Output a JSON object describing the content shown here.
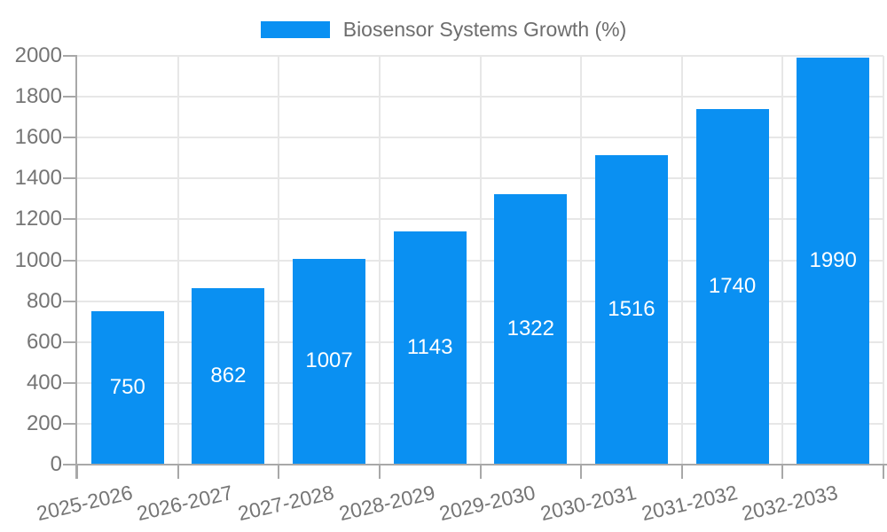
{
  "chart_data": {
    "type": "bar",
    "title": "Biosensor Systems Growth (%)",
    "categories": [
      "2025-2026",
      "2026-2027",
      "2027-2028",
      "2028-2029",
      "2029-2030",
      "2030-2031",
      "2031-2032",
      "2032-2033"
    ],
    "values": [
      750,
      862,
      1007,
      1143,
      1322,
      1516,
      1740,
      1990
    ],
    "xlabel": "",
    "ylabel": "",
    "ylim": [
      0,
      2000
    ],
    "ytick_step": 200,
    "ytick_labels": [
      "0",
      "200",
      "400",
      "600",
      "800",
      "1000",
      "1200",
      "1400",
      "1600",
      "1800",
      "2000"
    ],
    "grid": true,
    "legend_position": "top",
    "value_labels": "inside-bar-centered"
  },
  "legend": {
    "label": "Biosensor Systems Growth (%)"
  },
  "colors": {
    "bar": "#0a90f2",
    "value_label": "#ffffff",
    "axis": "#a8a8a8",
    "grid": "#e7e7e7",
    "tick_label": "#757575",
    "legend_text": "#6d6d6d",
    "background": "#ffffff"
  }
}
